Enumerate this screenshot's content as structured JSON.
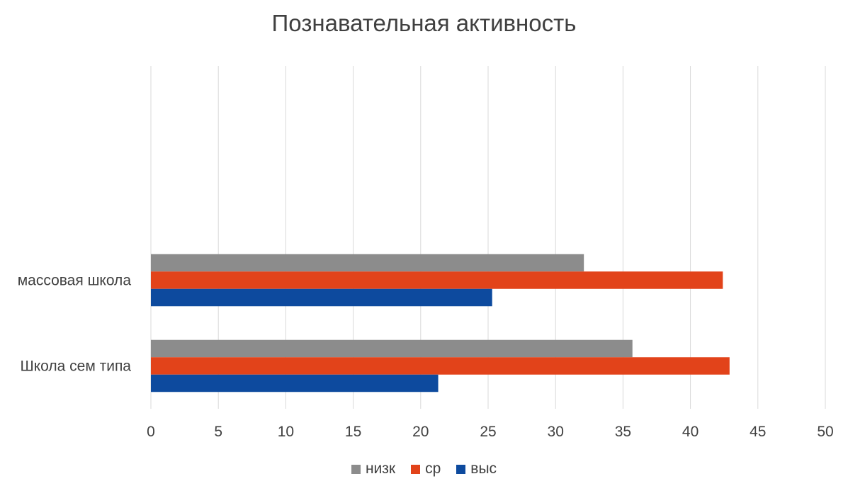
{
  "chart_data": {
    "type": "bar",
    "orientation": "horizontal",
    "title": "Познавательная активность",
    "categories": [
      "массовая школа",
      "Школа сем типа"
    ],
    "series": [
      {
        "name": "низк",
        "color": "#8c8c8c",
        "values": [
          32.1,
          35.7
        ]
      },
      {
        "name": "ср",
        "color": "#e2431a",
        "values": [
          42.4,
          42.9
        ]
      },
      {
        "name": "выс",
        "color": "#0d4a9e",
        "values": [
          25.3,
          21.3
        ]
      }
    ],
    "xlim": [
      0,
      50
    ],
    "xticks": [
      "0",
      "5",
      "10",
      "15",
      "20",
      "25",
      "30",
      "35",
      "40",
      "45",
      "50"
    ],
    "grid": "vertical",
    "legend_position": "bottom"
  }
}
